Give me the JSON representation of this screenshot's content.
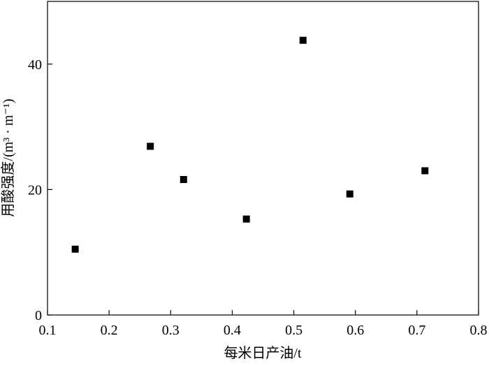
{
  "chart_data": {
    "type": "scatter",
    "x_label": "每米日产油/t",
    "y_label": "用酸强度/(m³ · m⁻¹)",
    "series": [
      {
        "color": "#000000",
        "x": [
          0.145,
          0.267,
          0.321,
          0.423,
          0.515,
          0.591,
          0.713
        ],
        "values": [
          10.5,
          26.9,
          21.6,
          15.3,
          43.8,
          19.3,
          23.0
        ]
      }
    ],
    "xlim": [
      0.1,
      0.8
    ],
    "xticks": [
      0.1,
      0.2,
      0.3,
      0.4,
      0.5,
      0.6,
      0.7,
      0.8
    ],
    "ylim": [
      0,
      50
    ],
    "yticks": [
      0,
      20,
      40
    ]
  }
}
